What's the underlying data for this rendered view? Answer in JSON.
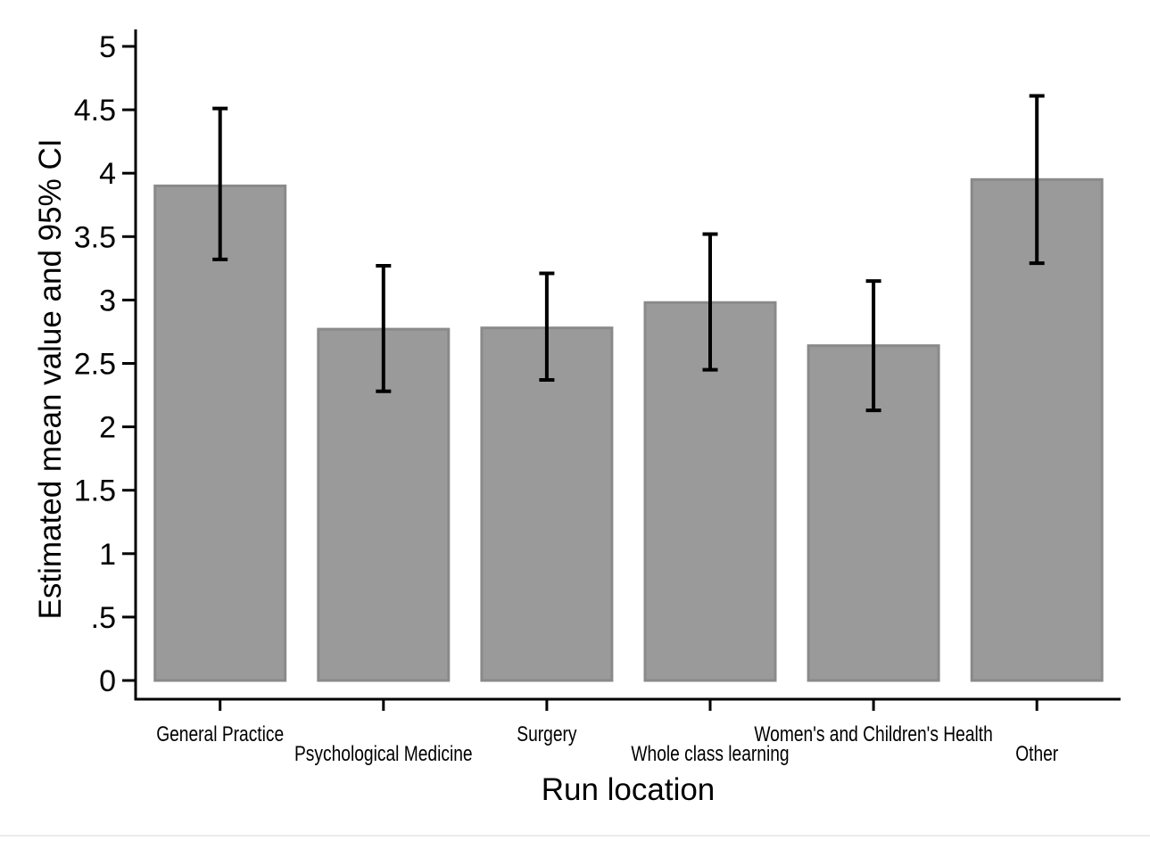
{
  "figure": {
    "background_color": "#ffffff",
    "bar_fill_color": "#9a9a9a",
    "bar_border_color": "#8a8a8a",
    "error_bar_color": "#000000",
    "axis_color": "#000000",
    "text_color": "#000000"
  },
  "chart_data": {
    "type": "bar",
    "title": "",
    "xlabel": "Run location",
    "ylabel": "Estimated mean value and 95% CI",
    "categories": [
      "General Practice",
      "Psychological Medicine",
      "Surgery",
      "Whole class learning",
      "Women's and Children's Health",
      "Other"
    ],
    "values": [
      3.9,
      2.77,
      2.78,
      2.98,
      2.64,
      3.95
    ],
    "ci_low": [
      3.32,
      2.28,
      2.37,
      2.45,
      2.13,
      3.29
    ],
    "ci_high": [
      4.51,
      3.27,
      3.21,
      3.52,
      3.15,
      4.61
    ],
    "error_bars": "95% CI",
    "ylim": [
      0,
      5.15
    ],
    "ytick_labels": [
      "0",
      ".5",
      "1",
      "1.5",
      "2",
      "2.5",
      "3",
      "3.5",
      "4",
      "4.5",
      "5"
    ],
    "ytick_values": [
      0,
      0.5,
      1,
      1.5,
      2,
      2.5,
      3,
      3.5,
      4,
      4.5,
      5
    ],
    "grid": false,
    "legend": "none",
    "category_label_rows": [
      "upper",
      "lower",
      "upper",
      "lower",
      "upper",
      "lower"
    ]
  }
}
